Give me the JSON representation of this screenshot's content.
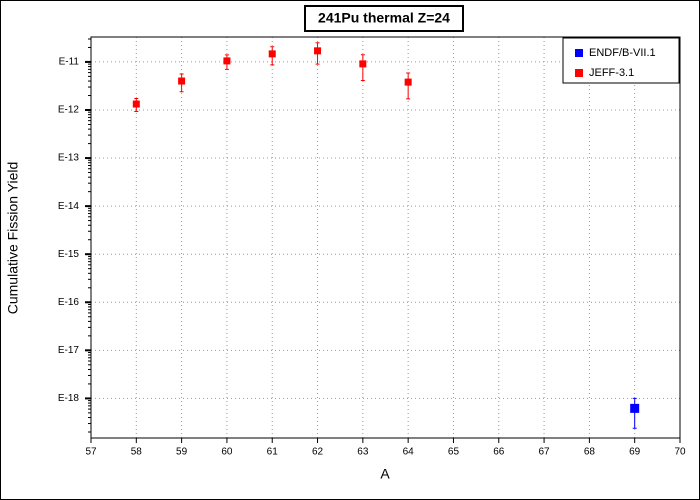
{
  "chart_data": {
    "type": "scatter",
    "title": "241Pu thermal Z=24",
    "x_label": "A",
    "y_label": "Cumulative Fission Yield",
    "log_y": true,
    "grid": true,
    "legend_position": "upper right",
    "xlim": [
      57,
      70
    ],
    "xticks": [
      57,
      58,
      59,
      60,
      61,
      62,
      63,
      64,
      65,
      66,
      67,
      68,
      69,
      70
    ],
    "ylim": [
      1.5e-19,
      3.3e-11
    ],
    "yticks": [
      {
        "value": 1e-18,
        "label": "E-18"
      },
      {
        "value": 1e-17,
        "label": "E-17"
      },
      {
        "value": 1e-16,
        "label": "E-16"
      },
      {
        "value": 1e-15,
        "label": "E-15"
      },
      {
        "value": 1e-14,
        "label": "E-14"
      },
      {
        "value": 1e-13,
        "label": "E-13"
      },
      {
        "value": 1e-12,
        "label": "E-12"
      },
      {
        "value": 1e-11,
        "label": "E-11"
      }
    ],
    "series": [
      {
        "name": "ENDF/B-VII.1",
        "color": "#0000ff",
        "x": [
          69
        ],
        "values": [
          6.2e-19
        ],
        "errors": [
          3.8e-19
        ]
      },
      {
        "name": "JEFF-3.1",
        "color": "#ff0000",
        "x": [
          58,
          59,
          60,
          61,
          62,
          63,
          64
        ],
        "values": [
          1.33e-12,
          4e-12,
          1.05e-11,
          1.47e-11,
          1.7e-11,
          9.1e-12,
          3.8e-12
        ],
        "errors": [
          4e-13,
          1.6e-12,
          3.5e-12,
          6e-12,
          8e-12,
          5e-12,
          2.1e-12
        ]
      }
    ]
  }
}
